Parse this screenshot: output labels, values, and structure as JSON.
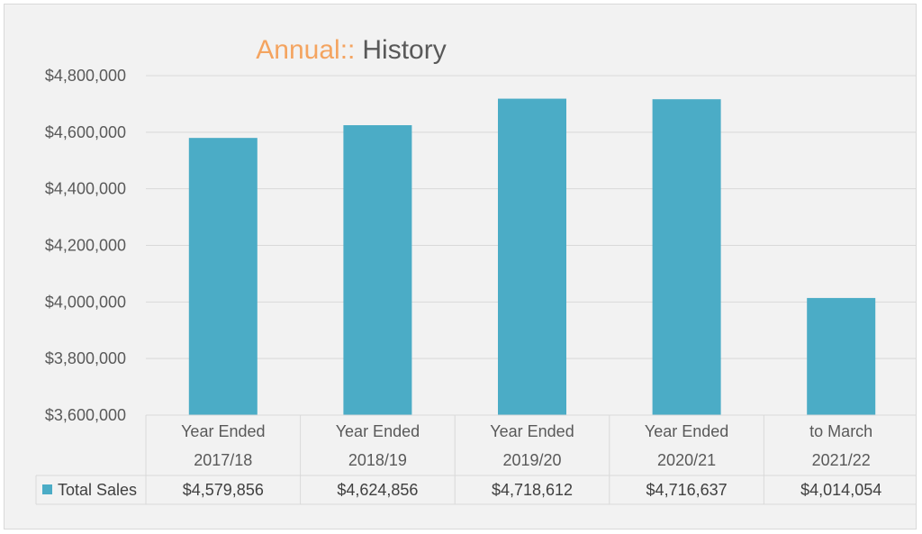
{
  "chart_data": {
    "type": "bar",
    "title_part1": "Annual::",
    "title_part2": "History",
    "title_colors": {
      "part1": "#f4a460",
      "part2": "#595959"
    },
    "categories": [
      [
        "Year Ended",
        "2017/18"
      ],
      [
        "Year Ended",
        "2018/19"
      ],
      [
        "Year Ended",
        "2019/20"
      ],
      [
        "Year Ended",
        "2020/21"
      ],
      [
        "to March",
        "2021/22"
      ]
    ],
    "series": [
      {
        "name": "Total Sales",
        "values": [
          4579856,
          4624856,
          4718612,
          4716637,
          4014054
        ],
        "labels": [
          "$4,579,856",
          "$4,624,856",
          "$4,718,612",
          "$4,716,637",
          "$4,014,054"
        ],
        "color": "#4bacc6"
      }
    ],
    "ylim": [
      3600000,
      4800000
    ],
    "yticks": [
      3600000,
      3800000,
      4000000,
      4200000,
      4400000,
      4600000,
      4800000
    ],
    "ytick_labels": [
      "$3,600,000",
      "$3,800,000",
      "$4,000,000",
      "$4,200,000",
      "$4,400,000",
      "$4,600,000",
      "$4,800,000"
    ],
    "grid": true,
    "legend": "data-table"
  }
}
